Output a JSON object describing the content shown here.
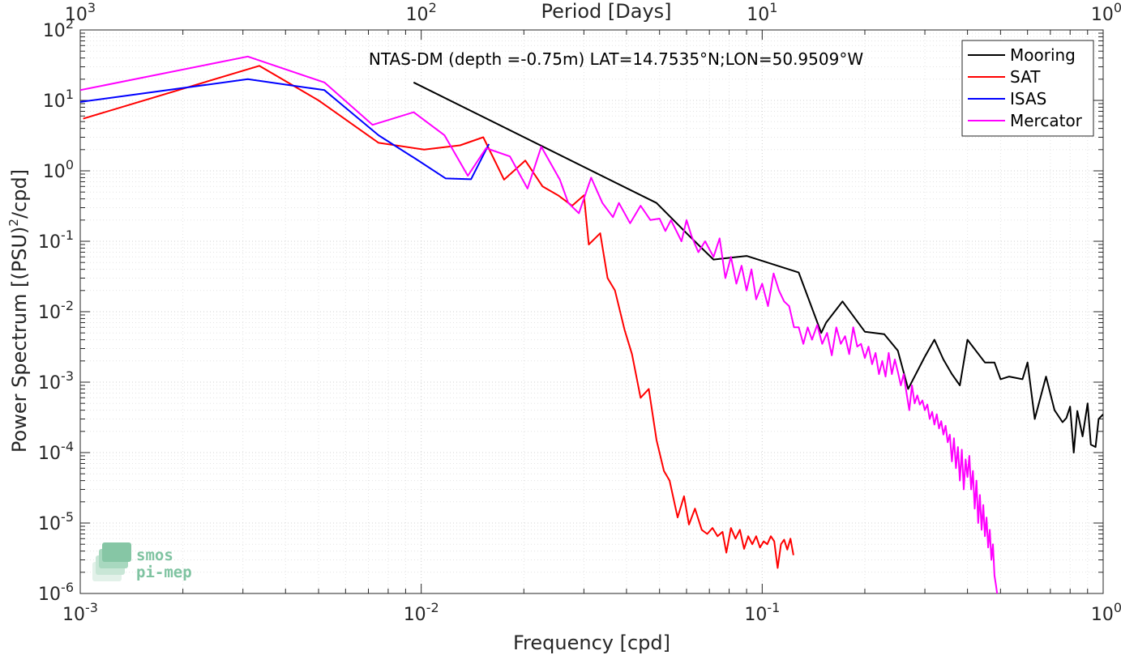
{
  "chart_data": {
    "type": "line",
    "title": "NTAS-DM (depth =-0.75m) LAT=14.7535°N;LON=50.9509°W",
    "xlabel": "Frequency [cpd]",
    "ylabel_base": "Power Spectrum [(PSU)",
    "ylabel_sup": "2",
    "ylabel_tail": "/cpd]",
    "x_top_label": "Period [Days]",
    "x_scale": "log",
    "y_scale": "log",
    "xlim": [
      0.001,
      1
    ],
    "ylim": [
      1e-06,
      100
    ],
    "grid": true,
    "legend_position": "top-right",
    "x_ticks": [
      {
        "value": 0.001,
        "base": "10",
        "exp": "-3"
      },
      {
        "value": 0.01,
        "base": "10",
        "exp": "-2"
      },
      {
        "value": 0.1,
        "base": "10",
        "exp": "-1"
      },
      {
        "value": 1,
        "base": "10",
        "exp": "0"
      }
    ],
    "x_top_ticks": [
      {
        "value": 0.001,
        "base": "10",
        "exp": "3"
      },
      {
        "value": 0.01,
        "base": "10",
        "exp": "2"
      },
      {
        "value": 0.1,
        "base": "10",
        "exp": "1"
      },
      {
        "value": 1,
        "base": "10",
        "exp": "0"
      }
    ],
    "y_ticks": [
      {
        "value": 100,
        "base": "10",
        "exp": "2"
      },
      {
        "value": 10,
        "base": "10",
        "exp": "1"
      },
      {
        "value": 1,
        "base": "10",
        "exp": "0"
      },
      {
        "value": 0.1,
        "base": "10",
        "exp": "-1"
      },
      {
        "value": 0.01,
        "base": "10",
        "exp": "-2"
      },
      {
        "value": 0.001,
        "base": "10",
        "exp": "-3"
      },
      {
        "value": 0.0001,
        "base": "10",
        "exp": "-4"
      },
      {
        "value": 1e-05,
        "base": "10",
        "exp": "-5"
      },
      {
        "value": 1e-06,
        "base": "10",
        "exp": "-6"
      }
    ],
    "series": [
      {
        "name": "Mooring",
        "color": "#000000",
        "x": [
          0.0095,
          0.049,
          0.061,
          0.072,
          0.09,
          0.128,
          0.149,
          0.154,
          0.172,
          0.2,
          0.228,
          0.25,
          0.268,
          0.3,
          0.32,
          0.34,
          0.36,
          0.38,
          0.4,
          0.45,
          0.48,
          0.5,
          0.53,
          0.58,
          0.6,
          0.63,
          0.68,
          0.72,
          0.76,
          0.78,
          0.8,
          0.82,
          0.84,
          0.87,
          0.9,
          0.92,
          0.95,
          0.97,
          1.0
        ],
        "y": [
          18,
          0.35,
          0.12,
          0.055,
          0.062,
          0.036,
          0.005,
          0.007,
          0.014,
          0.0052,
          0.0048,
          0.0028,
          0.0008,
          0.0023,
          0.004,
          0.0021,
          0.0013,
          0.0009,
          0.004,
          0.0019,
          0.0019,
          0.0011,
          0.0012,
          0.0011,
          0.0019,
          0.0003,
          0.0012,
          0.0004,
          0.00027,
          0.00031,
          0.00045,
          0.0001,
          0.00039,
          0.00017,
          0.0005,
          0.00013,
          0.00012,
          0.0003,
          0.00035
        ]
      },
      {
        "name": "SAT",
        "color": "#ff0000",
        "x": [
          0.00102,
          0.00335,
          0.005,
          0.0075,
          0.0102,
          0.013,
          0.0152,
          0.0175,
          0.0202,
          0.0227,
          0.0252,
          0.0277,
          0.03,
          0.031,
          0.0335,
          0.0352,
          0.037,
          0.0395,
          0.0415,
          0.044,
          0.0465,
          0.049,
          0.0515,
          0.0535,
          0.0565,
          0.059,
          0.061,
          0.0635,
          0.0665,
          0.069,
          0.0715,
          0.074,
          0.0765,
          0.0785,
          0.081,
          0.0835,
          0.086,
          0.0885,
          0.091,
          0.0935,
          0.096,
          0.0985,
          0.101,
          0.1035,
          0.106,
          0.1085,
          0.111,
          0.1135,
          0.116,
          0.1185,
          0.121,
          0.1235
        ],
        "y": [
          5.5,
          31,
          10,
          2.5,
          2.0,
          2.3,
          3.0,
          0.75,
          1.4,
          0.6,
          0.45,
          0.32,
          0.45,
          0.09,
          0.13,
          0.03,
          0.02,
          0.0055,
          0.0025,
          0.0006,
          0.0008,
          0.00015,
          5.5e-05,
          4e-05,
          1.2e-05,
          2.4e-05,
          9.5e-06,
          1.6e-05,
          8e-06,
          7e-06,
          8.5e-06,
          6.5e-06,
          7.5e-06,
          3.8e-06,
          8.5e-06,
          6e-06,
          8e-06,
          4.3e-06,
          6.5e-06,
          5e-06,
          6.5e-06,
          4.5e-06,
          5.5e-06,
          5e-06,
          6.5e-06,
          5.5e-06,
          2.3e-06,
          5e-06,
          5.8e-06,
          4.2e-06,
          6e-06,
          3.5e-06
        ]
      },
      {
        "name": "ISAS",
        "color": "#0000ff",
        "x": [
          0.001,
          0.0031,
          0.0052,
          0.0075,
          0.0097,
          0.0118,
          0.014,
          0.0158
        ],
        "y": [
          9.5,
          20,
          14,
          3.2,
          1.45,
          0.78,
          0.76,
          2.4
        ]
      },
      {
        "name": "Mercator",
        "color": "#ff00ff",
        "x": [
          0.001,
          0.0031,
          0.0052,
          0.0072,
          0.0095,
          0.0117,
          0.0137,
          0.0155,
          0.0182,
          0.0205,
          0.0225,
          0.0255,
          0.027,
          0.029,
          0.0315,
          0.034,
          0.0365,
          0.038,
          0.041,
          0.044,
          0.047,
          0.05,
          0.052,
          0.054,
          0.058,
          0.06,
          0.062,
          0.065,
          0.068,
          0.072,
          0.075,
          0.078,
          0.081,
          0.084,
          0.087,
          0.09,
          0.093,
          0.096,
          0.1,
          0.104,
          0.108,
          0.112,
          0.116,
          0.12,
          0.124,
          0.128,
          0.132,
          0.136,
          0.14,
          0.145,
          0.15,
          0.155,
          0.16,
          0.165,
          0.17,
          0.175,
          0.18,
          0.185,
          0.19,
          0.195,
          0.2,
          0.205,
          0.21,
          0.215,
          0.22,
          0.225,
          0.23,
          0.235,
          0.24,
          0.245,
          0.25,
          0.255,
          0.26,
          0.265,
          0.27,
          0.275,
          0.28,
          0.285,
          0.29,
          0.295,
          0.3,
          0.305,
          0.31,
          0.315,
          0.32,
          0.325,
          0.33,
          0.335,
          0.34,
          0.345,
          0.35,
          0.355,
          0.36,
          0.365,
          0.37,
          0.375,
          0.38,
          0.385,
          0.39,
          0.395,
          0.4,
          0.405,
          0.41,
          0.415,
          0.42,
          0.425,
          0.43,
          0.435,
          0.44,
          0.445,
          0.45,
          0.455,
          0.46,
          0.465,
          0.47,
          0.475,
          0.48,
          0.485,
          0.49
        ],
        "y": [
          14,
          42,
          18,
          4.5,
          6.8,
          3.2,
          0.85,
          2.1,
          1.6,
          0.56,
          2.2,
          0.75,
          0.35,
          0.25,
          0.8,
          0.35,
          0.22,
          0.35,
          0.18,
          0.32,
          0.2,
          0.21,
          0.14,
          0.2,
          0.1,
          0.2,
          0.12,
          0.07,
          0.1,
          0.06,
          0.11,
          0.03,
          0.06,
          0.025,
          0.045,
          0.02,
          0.04,
          0.015,
          0.025,
          0.012,
          0.035,
          0.02,
          0.014,
          0.012,
          0.006,
          0.006,
          0.0035,
          0.006,
          0.004,
          0.0065,
          0.0035,
          0.005,
          0.0024,
          0.006,
          0.0035,
          0.0045,
          0.0025,
          0.006,
          0.0032,
          0.0035,
          0.0022,
          0.0032,
          0.0018,
          0.0026,
          0.0013,
          0.002,
          0.0012,
          0.0026,
          0.0013,
          0.0021,
          0.0014,
          0.0009,
          0.0013,
          0.0007,
          0.0004,
          0.0009,
          0.0005,
          0.00065,
          0.00048,
          0.00055,
          0.0004,
          0.00048,
          0.0003,
          0.00038,
          0.00025,
          0.00035,
          0.00022,
          0.00028,
          0.00018,
          0.00024,
          0.00014,
          0.00018,
          7.5e-05,
          0.00016,
          6e-05,
          0.00012,
          4e-05,
          0.00011,
          3e-05,
          8e-05,
          4.5e-05,
          9e-05,
          3e-05,
          5.5e-05,
          1.6e-05,
          4e-05,
          1e-05,
          2.5e-05,
          8e-06,
          1.8e-05,
          6.5e-06,
          1.2e-05,
          4.5e-06,
          8e-06,
          3e-06,
          5e-06,
          1.8e-06,
          1.3e-06,
          9e-07
        ]
      }
    ]
  },
  "logo": {
    "line1": "smos",
    "line2": "pi-mep"
  }
}
